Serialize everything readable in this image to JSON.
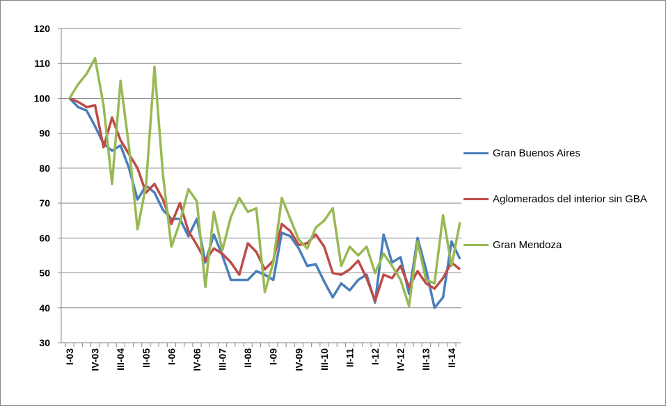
{
  "chart_data": {
    "type": "line",
    "categories": [
      "I-03",
      null,
      null,
      "IV-03",
      null,
      null,
      "III-04",
      null,
      null,
      "II-05",
      null,
      null,
      "I-06",
      null,
      null,
      "IV-06",
      null,
      null,
      "III-07",
      null,
      null,
      "II-08",
      null,
      null,
      "I-09",
      null,
      null,
      "IV-09",
      null,
      null,
      "III-10",
      null,
      null,
      "II-11",
      null,
      null,
      "I-12",
      null,
      null,
      "IV-12",
      null,
      null,
      "III-13",
      null,
      null,
      "II-14",
      null
    ],
    "series": [
      {
        "name": "Gran Buenos Aires",
        "color": "#4a7ebb",
        "values": [
          100,
          97.5,
          96.5,
          92,
          87,
          85,
          86.5,
          80,
          71,
          75,
          73,
          68,
          65.5,
          65.5,
          60.5,
          65.5,
          53,
          61,
          55,
          48,
          48,
          48,
          50.5,
          49.5,
          48,
          61.5,
          60.5,
          57,
          52,
          52.5,
          47.5,
          43,
          47,
          45,
          48,
          49.5,
          41.5,
          61,
          53,
          54.5,
          44,
          60,
          51,
          40,
          43,
          59,
          54
        ]
      },
      {
        "name": "Aglomerados del interior sin GBA",
        "color": "#be4b48",
        "values": [
          100,
          99,
          97.5,
          98,
          86,
          94.5,
          88,
          84,
          80,
          73,
          75.5,
          71,
          64,
          70,
          62,
          58,
          53.5,
          57,
          55.5,
          53,
          49.5,
          58.5,
          56,
          51,
          53.5,
          64,
          62,
          58,
          58.5,
          61,
          57.5,
          50,
          49.5,
          51,
          53.5,
          48.5,
          42,
          49.5,
          48.5,
          52,
          46,
          50.5,
          47,
          45.5,
          48.5,
          53,
          51
        ]
      },
      {
        "name": "Gran Mendoza",
        "color": "#98b954",
        "values": [
          100,
          104,
          107,
          111.5,
          98,
          75.5,
          105,
          86,
          62.5,
          75,
          109,
          78,
          57.5,
          64.5,
          74,
          70.5,
          46,
          67.5,
          56.5,
          66,
          71.5,
          67.5,
          68.5,
          44.5,
          53,
          71.5,
          65.5,
          59.5,
          57,
          63,
          65,
          68.5,
          52,
          57.5,
          55,
          57.5,
          50,
          55.5,
          52,
          48,
          40.5,
          59,
          48,
          47,
          66.5,
          52,
          64.5
        ]
      }
    ],
    "ylim": [
      30,
      120
    ],
    "yticks": [
      30,
      40,
      50,
      60,
      70,
      80,
      90,
      100,
      110,
      120
    ],
    "grid": true
  }
}
